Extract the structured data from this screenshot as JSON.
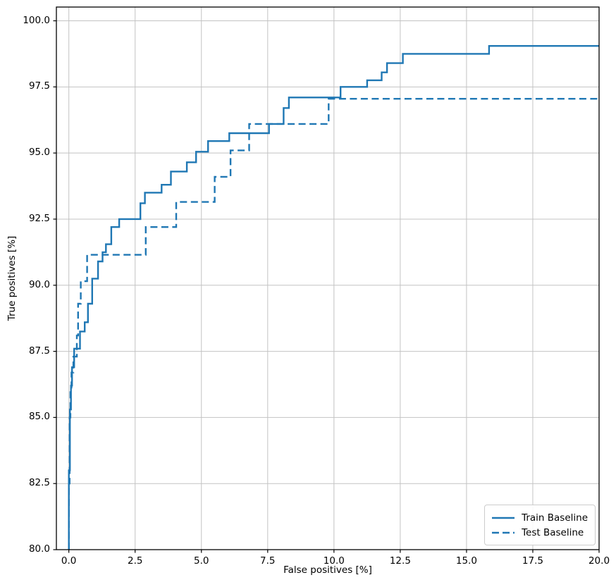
{
  "figure": {
    "background": "#ffffff"
  },
  "chart_data": {
    "type": "line",
    "subtype": "roc-step-curves",
    "title": "",
    "xlabel": "False positives [%]",
    "ylabel": "True positives [%]",
    "xlim": [
      -0.47,
      20.0
    ],
    "ylim": [
      80.0,
      100.52
    ],
    "grid": true,
    "grid_color": "#c3c3c3",
    "spine_color": "#000000",
    "line_color": "#1f77b4",
    "x_ticks": {
      "values": [
        0.0,
        2.5,
        5.0,
        7.5,
        10.0,
        12.5,
        15.0,
        17.5,
        20.0
      ],
      "labels": [
        "0.0",
        "2.5",
        "5.0",
        "7.5",
        "10.0",
        "12.5",
        "15.0",
        "17.5",
        "20.0"
      ]
    },
    "y_ticks": {
      "values": [
        80.0,
        82.5,
        85.0,
        87.5,
        90.0,
        92.5,
        95.0,
        97.5,
        100.0
      ],
      "labels": [
        "80.0",
        "82.5",
        "85.0",
        "87.5",
        "90.0",
        "92.5",
        "95.0",
        "97.5",
        "100.0"
      ]
    },
    "legend": {
      "position": "lower right",
      "entries": [
        {
          "label": "Train Baseline",
          "style": "solid"
        },
        {
          "label": "Test Baseline",
          "style": "dashed"
        }
      ]
    },
    "series": [
      {
        "name": "Train Baseline",
        "style": "solid",
        "color": "#1f77b4",
        "points": [
          [
            0.0,
            80.0
          ],
          [
            0.0,
            83.0
          ],
          [
            0.04,
            83.0
          ],
          [
            0.04,
            85.3
          ],
          [
            0.08,
            85.3
          ],
          [
            0.08,
            86.2
          ],
          [
            0.12,
            86.2
          ],
          [
            0.12,
            86.9
          ],
          [
            0.2,
            86.9
          ],
          [
            0.2,
            87.6
          ],
          [
            0.42,
            87.6
          ],
          [
            0.42,
            88.25
          ],
          [
            0.6,
            88.25
          ],
          [
            0.6,
            88.6
          ],
          [
            0.72,
            88.6
          ],
          [
            0.72,
            89.3
          ],
          [
            0.88,
            89.3
          ],
          [
            0.88,
            90.25
          ],
          [
            1.1,
            90.25
          ],
          [
            1.1,
            90.9
          ],
          [
            1.27,
            90.9
          ],
          [
            1.27,
            91.25
          ],
          [
            1.4,
            91.25
          ],
          [
            1.4,
            91.55
          ],
          [
            1.6,
            91.55
          ],
          [
            1.6,
            92.2
          ],
          [
            1.9,
            92.2
          ],
          [
            1.9,
            92.5
          ],
          [
            2.7,
            92.5
          ],
          [
            2.7,
            93.1
          ],
          [
            2.87,
            93.1
          ],
          [
            2.87,
            93.5
          ],
          [
            3.5,
            93.5
          ],
          [
            3.5,
            93.8
          ],
          [
            3.85,
            93.8
          ],
          [
            3.85,
            94.3
          ],
          [
            4.45,
            94.3
          ],
          [
            4.45,
            94.65
          ],
          [
            4.8,
            94.65
          ],
          [
            4.8,
            95.05
          ],
          [
            5.25,
            95.05
          ],
          [
            5.25,
            95.45
          ],
          [
            6.05,
            95.45
          ],
          [
            6.05,
            95.75
          ],
          [
            7.55,
            95.75
          ],
          [
            7.55,
            96.1
          ],
          [
            8.1,
            96.1
          ],
          [
            8.1,
            96.7
          ],
          [
            8.3,
            96.7
          ],
          [
            8.3,
            97.1
          ],
          [
            10.25,
            97.1
          ],
          [
            10.25,
            97.5
          ],
          [
            11.25,
            97.5
          ],
          [
            11.25,
            97.75
          ],
          [
            11.8,
            97.75
          ],
          [
            11.8,
            98.05
          ],
          [
            12.0,
            98.05
          ],
          [
            12.0,
            98.4
          ],
          [
            12.6,
            98.4
          ],
          [
            12.6,
            98.75
          ],
          [
            15.85,
            98.75
          ],
          [
            15.85,
            99.05
          ],
          [
            20.0,
            99.05
          ]
        ]
      },
      {
        "name": "Test Baseline",
        "style": "dashed",
        "color": "#1f77b4",
        "points": [
          [
            0.0,
            80.0
          ],
          [
            0.0,
            82.5
          ],
          [
            0.03,
            82.5
          ],
          [
            0.03,
            85.0
          ],
          [
            0.06,
            85.0
          ],
          [
            0.06,
            86.0
          ],
          [
            0.1,
            86.0
          ],
          [
            0.1,
            86.7
          ],
          [
            0.17,
            86.7
          ],
          [
            0.17,
            87.3
          ],
          [
            0.3,
            87.3
          ],
          [
            0.3,
            88.1
          ],
          [
            0.35,
            88.1
          ],
          [
            0.35,
            89.3
          ],
          [
            0.45,
            89.3
          ],
          [
            0.45,
            90.15
          ],
          [
            0.69,
            90.15
          ],
          [
            0.69,
            91.15
          ],
          [
            2.9,
            91.15
          ],
          [
            2.9,
            92.2
          ],
          [
            4.05,
            92.2
          ],
          [
            4.05,
            93.15
          ],
          [
            5.5,
            93.15
          ],
          [
            5.5,
            94.1
          ],
          [
            6.1,
            94.1
          ],
          [
            6.1,
            95.1
          ],
          [
            6.8,
            95.1
          ],
          [
            6.8,
            96.1
          ],
          [
            9.8,
            96.1
          ],
          [
            9.8,
            97.05
          ],
          [
            20.0,
            97.05
          ]
        ]
      }
    ]
  }
}
